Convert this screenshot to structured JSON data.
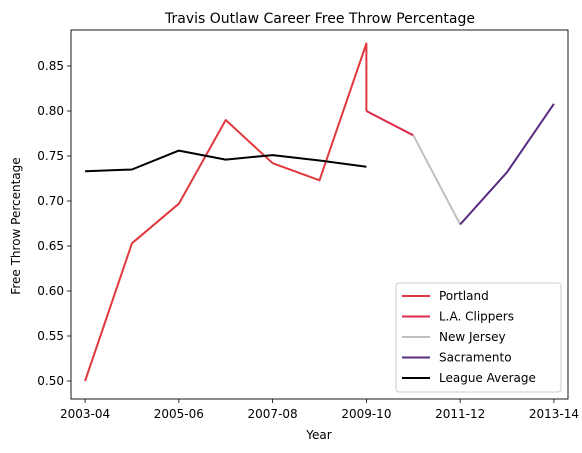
{
  "chart_data": {
    "type": "line",
    "title": "Travis Outlaw Career Free Throw Percentage",
    "xlabel": "Year",
    "ylabel": "Free Throw Percentage",
    "x_ticks": [
      "2003-04",
      "2005-06",
      "2007-08",
      "2009-10",
      "2011-12",
      "2013-14"
    ],
    "y_ticks": [
      "0.50",
      "0.55",
      "0.60",
      "0.65",
      "0.70",
      "0.75",
      "0.80",
      "0.85"
    ],
    "xlim": [
      -0.3,
      10.3
    ],
    "ylim": [
      0.48,
      0.89
    ],
    "legend_position": "lower-right",
    "grid": false,
    "series": [
      {
        "name": "Portland",
        "color": "#e03a3e",
        "x": [
          0,
          1,
          2,
          3,
          4,
          5,
          6,
          6
        ],
        "y": [
          0.5,
          0.653,
          0.697,
          0.79,
          0.742,
          0.723,
          0.875,
          0.8
        ]
      },
      {
        "name": "L.A. Clippers",
        "color": "#e0294a",
        "x": [
          6,
          7
        ],
        "y": [
          0.8,
          0.773
        ]
      },
      {
        "name": "New Jersey",
        "color": "#c0c0c0",
        "x": [
          7,
          8
        ],
        "y": [
          0.773,
          0.674
        ]
      },
      {
        "name": "Sacramento",
        "color": "#5a2d81",
        "x": [
          8,
          9,
          10
        ],
        "y": [
          0.674,
          0.732,
          0.808
        ]
      },
      {
        "name": "League Average",
        "color": "#000000",
        "x": [
          0,
          1,
          2,
          3,
          4,
          5,
          6
        ],
        "y": [
          0.733,
          0.735,
          0.756,
          0.746,
          0.751,
          0.745,
          0.738
        ]
      }
    ]
  }
}
